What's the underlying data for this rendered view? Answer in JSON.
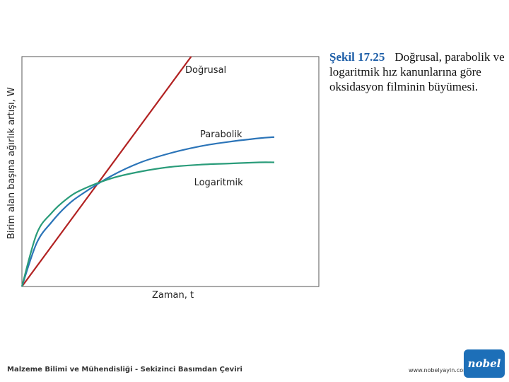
{
  "chart_data": {
    "type": "line",
    "xlabel": "Zaman, t",
    "ylabel": "Birim alan başına ağırlık artışı, W",
    "xlim": [
      0,
      1
    ],
    "ylim": [
      0,
      1
    ],
    "grid": false,
    "series": [
      {
        "name": "Doğrusal",
        "color": "#b22222",
        "label_at": [
          0.55,
          0.93
        ],
        "x": [
          0,
          0.57
        ],
        "y": [
          0,
          1.0
        ]
      },
      {
        "name": "Parabolik",
        "color": "#2b74b8",
        "label_at": [
          0.6,
          0.65
        ],
        "x": [
          0,
          0.05,
          0.1,
          0.15,
          0.2,
          0.3,
          0.4,
          0.5,
          0.6,
          0.7,
          0.8,
          0.85
        ],
        "y": [
          0,
          0.19,
          0.28,
          0.35,
          0.4,
          0.48,
          0.54,
          0.58,
          0.61,
          0.63,
          0.645,
          0.65
        ]
      },
      {
        "name": "Logaritmik",
        "color": "#2a9c7a",
        "label_at": [
          0.58,
          0.44
        ],
        "x": [
          0,
          0.05,
          0.1,
          0.15,
          0.2,
          0.3,
          0.4,
          0.5,
          0.6,
          0.7,
          0.8,
          0.85
        ],
        "y": [
          0,
          0.23,
          0.32,
          0.38,
          0.42,
          0.47,
          0.5,
          0.52,
          0.53,
          0.535,
          0.54,
          0.54
        ]
      }
    ]
  },
  "caption": {
    "number": "Şekil 17.25",
    "text": "Doğrusal, parabolik ve logaritmik hız kanunlarına göre oksidasyon filminin büyümesi."
  },
  "footer": {
    "left": "Malzeme Bilimi ve Mühendisliği - Sekizinci Basımdan Çeviri",
    "url": "www.nobelyayin.com",
    "logo": "nobel"
  }
}
